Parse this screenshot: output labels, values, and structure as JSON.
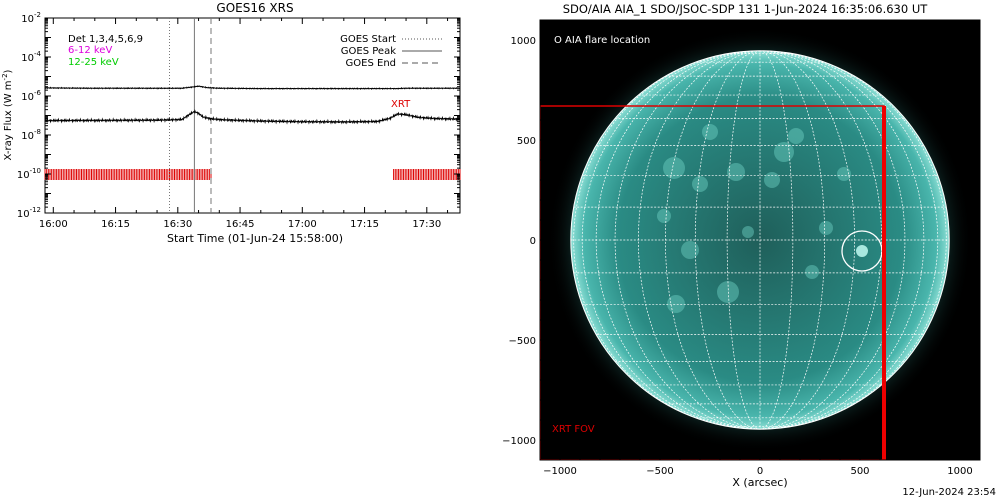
{
  "chart_data": [
    {
      "type": "line",
      "title": "GOES16 XRS",
      "xlabel": "Start Time (01-Jun-24 15:58:00)",
      "ylabel": "X-ray Flux (W m^-2)",
      "ylabel_parts": [
        "X-ray Flux (W m",
        "-2",
        ")"
      ],
      "yscale": "log",
      "ylim": [
        1e-12,
        0.01
      ],
      "xlim": [
        "15:58",
        "17:38"
      ],
      "x_ticks": [
        "16:00",
        "16:15",
        "16:30",
        "16:45",
        "17:00",
        "17:15",
        "17:30"
      ],
      "y_ticks": [
        {
          "base": "10",
          "exp": "-2"
        },
        {
          "base": "10",
          "exp": "-4"
        },
        {
          "base": "10",
          "exp": "-6"
        },
        {
          "base": "10",
          "exp": "-8"
        },
        {
          "base": "10",
          "exp": "-10"
        },
        {
          "base": "10",
          "exp": "-12"
        }
      ],
      "top_left_labels": [
        {
          "text": "Det 1,3,4,5,6,9",
          "color": "#000000"
        },
        {
          "text": "6-12 keV",
          "color": "#dd00dd"
        },
        {
          "text": "12-25 keV",
          "color": "#00cc00"
        }
      ],
      "legend": [
        {
          "label": "GOES Start",
          "style": "dotted"
        },
        {
          "label": "GOES Peak",
          "style": "solid"
        },
        {
          "label": "GOES End",
          "style": "dashed"
        }
      ],
      "legend_position": "top-right",
      "annotation": {
        "text": "XRT",
        "color": "#dd0000"
      },
      "event_times": {
        "start": "16:28",
        "peak": "16:34",
        "end": "16:38"
      },
      "series": [
        {
          "color": "#000000",
          "x": [
            "15:58",
            "16:10",
            "16:25",
            "16:31",
            "16:33",
            "16:35",
            "16:37",
            "16:40",
            "16:50",
            "17:00",
            "17:10",
            "17:18",
            "17:21",
            "17:23",
            "17:25",
            "17:28",
            "17:32",
            "17:38"
          ],
          "y": [
            2.6e-06,
            2.5e-06,
            2.5e-06,
            2.5e-06,
            2.8e-06,
            3.2e-06,
            2.7e-06,
            2.5e-06,
            2.4e-06,
            2.4e-06,
            2.4e-06,
            2.4e-06,
            2.4e-06,
            2.4e-06,
            2.5e-06,
            2.5e-06,
            2.5e-06,
            2.5e-06
          ]
        },
        {
          "color": "#000000",
          "x": [
            "15:58",
            "16:10",
            "16:25",
            "16:31",
            "16:33",
            "16:34",
            "16:35",
            "16:36",
            "16:38",
            "16:41",
            "16:50",
            "17:00",
            "17:10",
            "17:18",
            "17:21",
            "17:23",
            "17:25",
            "17:28",
            "17:32",
            "17:38"
          ],
          "y": [
            5.5e-08,
            5.6e-08,
            5.8e-08,
            6.2e-08,
            1.2e-07,
            1.6e-07,
            1.3e-07,
            8.5e-08,
            6.8e-08,
            6e-08,
            5.2e-08,
            4.8e-08,
            4.7e-08,
            4.9e-08,
            7e-08,
            1.2e-07,
            1.1e-07,
            8e-08,
            7e-08,
            6.5e-08
          ]
        }
      ],
      "xrt_obs_intervals": [
        [
          "15:58",
          "16:38"
        ],
        [
          "17:22",
          "17:38"
        ]
      ],
      "xrt_obs_level": 1e-10
    },
    {
      "type": "image",
      "title": "SDO/AIA AIA_1 SDO/JSOC-SDP 131  1-Jun-2024 16:35:06.630 UT",
      "xlabel": "X (arcsec)",
      "ylabel": "",
      "xlim": [
        -1100,
        1100
      ],
      "ylim": [
        -1100,
        1100
      ],
      "x_ticks": [
        -1000,
        -500,
        0,
        500,
        1000
      ],
      "y_ticks": [
        -1000,
        -500,
        0,
        500,
        1000
      ],
      "solar_radius_arcsec": 946,
      "flare_location": {
        "x": 510,
        "y": -55,
        "radius": 100
      },
      "xrt_fov": {
        "x0": -1100,
        "x1": 620,
        "y0": -1100,
        "y1": 670
      },
      "legend_text": "O AIA flare location",
      "fov_label": "XRT FOV",
      "colors": {
        "disk": "#2a8b84",
        "grid": "#ffffff",
        "fov": "#dd0000",
        "background": "#000000"
      }
    }
  ],
  "timestamp": "12-Jun-2024 23:54"
}
